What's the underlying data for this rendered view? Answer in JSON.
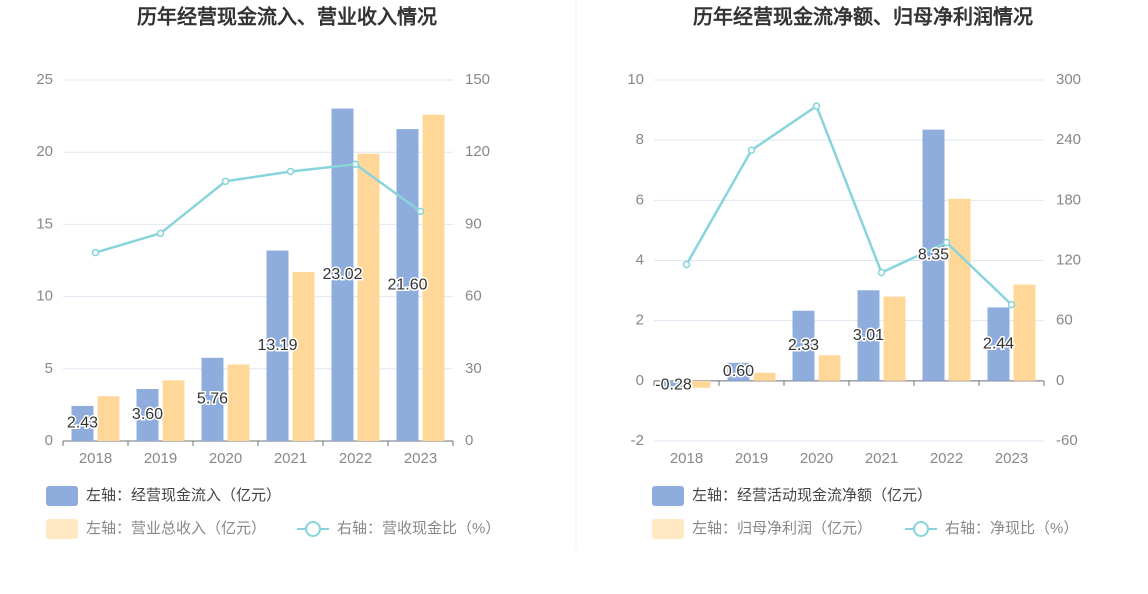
{
  "chart_data": [
    {
      "type": "bar",
      "title": "历年经营现金流入、营业收入情况",
      "categories": [
        "2018",
        "2019",
        "2020",
        "2021",
        "2022",
        "2023"
      ],
      "series": [
        {
          "name": "左轴：经营现金流入（亿元）",
          "color": "#8eaddc",
          "values": [
            2.43,
            3.6,
            5.76,
            13.19,
            23.02,
            21.6
          ],
          "value_labels": [
            "2.43",
            "3.60",
            "5.76",
            "13.19",
            "23.02",
            "21.60"
          ]
        },
        {
          "name": "左轴：营业总收入（亿元）",
          "color": "#ffd899",
          "values": [
            3.1,
            4.2,
            5.3,
            11.7,
            19.9,
            22.6
          ]
        },
        {
          "name": "右轴：营收现金比（%）",
          "color": "#88d4dc",
          "type": "line",
          "axis": "y2",
          "values": [
            78.3,
            86.3,
            107.9,
            112,
            115,
            95.4
          ]
        }
      ],
      "ylim": [
        0,
        25
      ],
      "yticks": [
        0,
        5,
        10,
        15,
        20,
        25
      ],
      "y2lim": [
        0,
        150
      ],
      "y2ticks": [
        0,
        30,
        60,
        90,
        120,
        150
      ],
      "grid": true
    },
    {
      "type": "bar",
      "title": "历年经营现金流净额、归母净利润情况",
      "categories": [
        "2018",
        "2019",
        "2020",
        "2021",
        "2022",
        "2023"
      ],
      "series": [
        {
          "name": "左轴：经营活动现金流净额（亿元）",
          "color": "#8eaddc",
          "values": [
            -0.28,
            0.6,
            2.33,
            3.01,
            8.35,
            2.44
          ],
          "value_labels": [
            "-0.28",
            "0.60",
            "2.33",
            "3.01",
            "8.35",
            "2.44"
          ]
        },
        {
          "name": "左轴：归母净利润（亿元）",
          "color": "#ffd899",
          "values": [
            -0.23,
            0.27,
            0.85,
            2.8,
            6.05,
            3.2
          ]
        },
        {
          "name": "右轴：净现比（%）",
          "color": "#88d4dc",
          "type": "line",
          "axis": "y2",
          "values": [
            116,
            230,
            274,
            108,
            138,
            76
          ]
        }
      ],
      "ylim": [
        -2,
        10
      ],
      "yticks": [
        -2,
        0,
        2,
        4,
        6,
        8,
        10
      ],
      "y2lim": [
        -60,
        300
      ],
      "y2ticks": [
        -60,
        0,
        60,
        120,
        180,
        240,
        300
      ],
      "grid": true
    }
  ]
}
